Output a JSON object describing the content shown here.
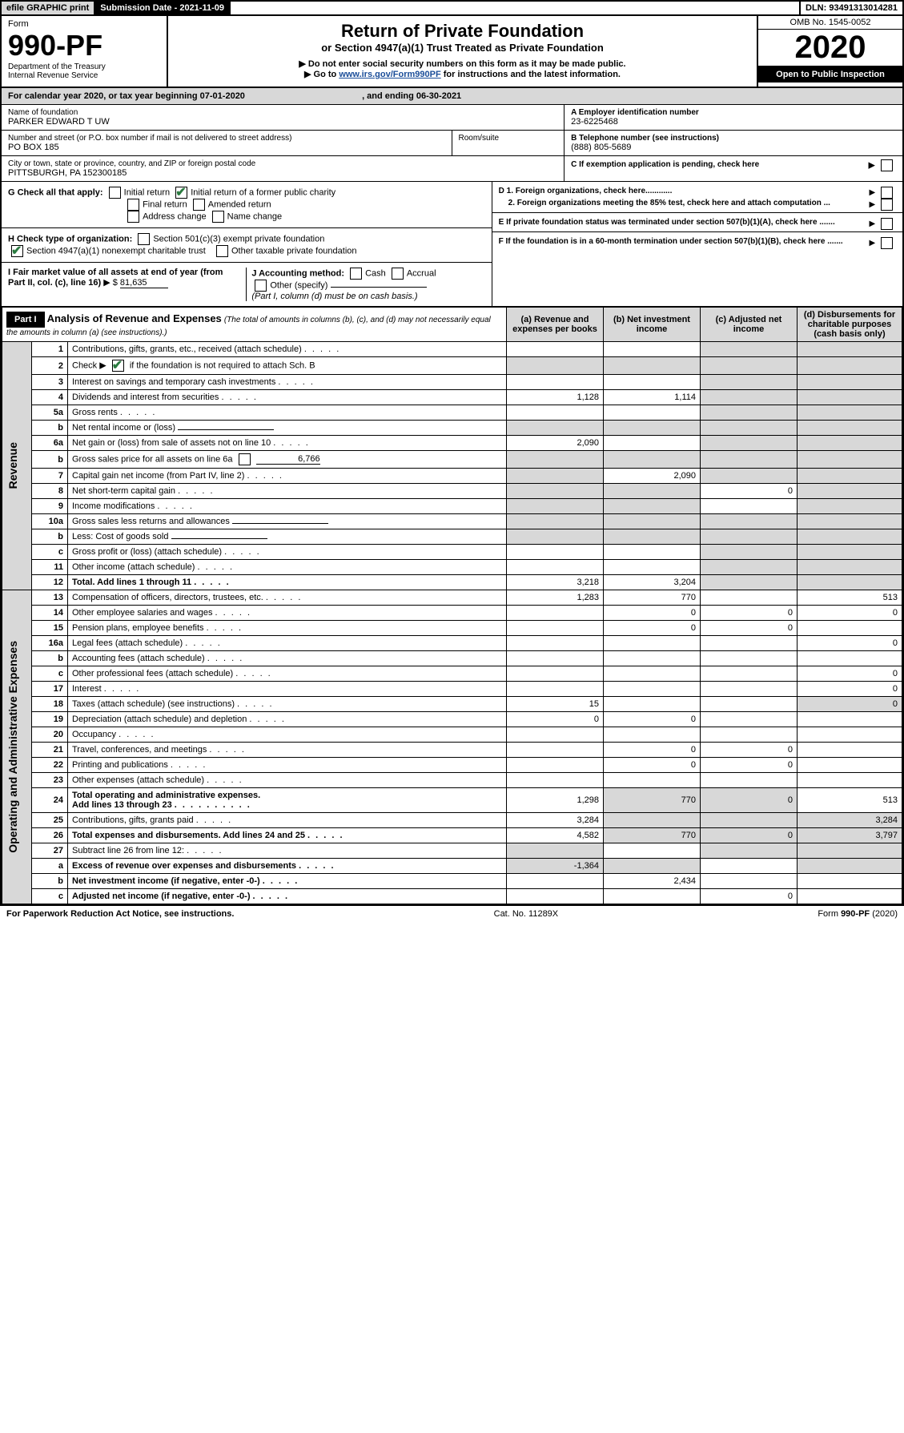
{
  "topbar": {
    "efile": "efile GRAPHIC print",
    "subdate_label": "Submission Date - ",
    "subdate": "2021-11-09",
    "dln_label": "DLN: ",
    "dln": "93491313014281"
  },
  "title": {
    "form_word": "Form",
    "form_no": "990-PF",
    "dept": "Department of the Treasury",
    "irs": "Internal Revenue Service",
    "main": "Return of Private Foundation",
    "sub": "or Section 4947(a)(1) Trust Treated as Private Foundation",
    "warn": "Do not enter social security numbers on this form as it may be made public.",
    "goto_pre": "Go to ",
    "goto_link": "www.irs.gov/Form990PF",
    "goto_post": " for instructions and the latest information.",
    "omb": "OMB No. 1545-0052",
    "year": "2020",
    "open": "Open to Public Inspection"
  },
  "cal": {
    "text_a": "For calendar year 2020, or tax year beginning ",
    "begin": "07-01-2020",
    "text_b": ", and ending ",
    "end": "06-30-2021"
  },
  "hdr": {
    "name_label": "Name of foundation",
    "name": "PARKER EDWARD T UW",
    "addr_label": "Number and street (or P.O. box number if mail is not delivered to street address)",
    "addr": "PO BOX 185",
    "room_label": "Room/suite",
    "city_label": "City or town, state or province, country, and ZIP or foreign postal code",
    "city": "PITTSBURGH, PA  152300185",
    "a_label": "A Employer identification number",
    "a_val": "23-6225468",
    "b_label": "B Telephone number (see instructions)",
    "b_val": "(888) 805-5689",
    "c_label": "C If exemption application is pending, check here",
    "d1": "D 1. Foreign organizations, check here............",
    "d2": "2. Foreign organizations meeting the 85% test, check here and attach computation ...",
    "e": "E  If private foundation status was terminated under section 507(b)(1)(A), check here .......",
    "f": "F  If the foundation is in a 60-month termination under section 507(b)(1)(B), check here .......",
    "g_label": "G Check all that apply:",
    "g_opts": [
      "Initial return",
      "Initial return of a former public charity",
      "Final return",
      "Amended return",
      "Address change",
      "Name change"
    ],
    "h_label": "H Check type of organization:",
    "h1": "Section 501(c)(3) exempt private foundation",
    "h2": "Section 4947(a)(1) nonexempt charitable trust",
    "h3": "Other taxable private foundation",
    "i_label": "I Fair market value of all assets at end of year (from Part II, col. (c), line 16)",
    "i_val": "81,635",
    "j_label": "J Accounting method:",
    "j_cash": "Cash",
    "j_accr": "Accrual",
    "j_other": "Other (specify)",
    "j_note": "(Part I, column (d) must be on cash basis.)"
  },
  "part1": {
    "label": "Part I",
    "title": "Analysis of Revenue and Expenses",
    "subtitle": "(The total of amounts in columns (b), (c), and (d) may not necessarily equal the amounts in column (a) (see instructions).)",
    "col_a": "(a)   Revenue and expenses per books",
    "col_b": "(b)  Net investment income",
    "col_c": "(c)  Adjusted net income",
    "col_d": "(d)  Disbursements for charitable purposes (cash basis only)",
    "section_rev": "Revenue",
    "section_exp": "Operating and Administrative Expenses",
    "rows": [
      {
        "n": "1",
        "d": "Contributions, gifts, grants, etc., received (attach schedule)"
      },
      {
        "n": "2",
        "d_pre": "Check ▶ ",
        "d_post": " if the foundation is not required to attach Sch. B",
        "checked": true
      },
      {
        "n": "3",
        "d": "Interest on savings and temporary cash investments"
      },
      {
        "n": "4",
        "d": "Dividends and interest from securities",
        "a": "1,128",
        "b": "1,114"
      },
      {
        "n": "5a",
        "d": "Gross rents"
      },
      {
        "n": "b",
        "d": "Net rental income or (loss)",
        "inline": true
      },
      {
        "n": "6a",
        "d": "Net gain or (loss) from sale of assets not on line 10",
        "a": "2,090"
      },
      {
        "n": "b",
        "d_pre": "Gross sales price for all assets on line 6a ",
        "inline_val": "6,766"
      },
      {
        "n": "7",
        "d": "Capital gain net income (from Part IV, line 2)",
        "b": "2,090"
      },
      {
        "n": "8",
        "d": "Net short-term capital gain",
        "c": "0"
      },
      {
        "n": "9",
        "d": "Income modifications"
      },
      {
        "n": "10a",
        "d": "Gross sales less returns and allowances",
        "inline": true
      },
      {
        "n": "b",
        "d": "Less: Cost of goods sold",
        "inline": true
      },
      {
        "n": "c",
        "d": "Gross profit or (loss) (attach schedule)"
      },
      {
        "n": "11",
        "d": "Other income (attach schedule)"
      },
      {
        "n": "12",
        "d": "Total. Add lines 1 through 11",
        "bold": true,
        "a": "3,218",
        "b": "3,204"
      },
      {
        "n": "13",
        "d": "Compensation of officers, directors, trustees, etc.",
        "a": "1,283",
        "b": "770",
        "dcol": "513"
      },
      {
        "n": "14",
        "d": "Other employee salaries and wages",
        "b": "0",
        "c": "0",
        "dcol": "0"
      },
      {
        "n": "15",
        "d": "Pension plans, employee benefits",
        "b": "0",
        "c": "0"
      },
      {
        "n": "16a",
        "d": "Legal fees (attach schedule)",
        "dcol": "0"
      },
      {
        "n": "b",
        "d": "Accounting fees (attach schedule)"
      },
      {
        "n": "c",
        "d": "Other professional fees (attach schedule)",
        "dcol": "0"
      },
      {
        "n": "17",
        "d": "Interest",
        "dcol": "0"
      },
      {
        "n": "18",
        "d": "Taxes (attach schedule) (see instructions)",
        "a": "15",
        "dcol": "0"
      },
      {
        "n": "19",
        "d": "Depreciation (attach schedule) and depletion",
        "a": "0",
        "b": "0"
      },
      {
        "n": "20",
        "d": "Occupancy"
      },
      {
        "n": "21",
        "d": "Travel, conferences, and meetings",
        "b": "0",
        "c": "0"
      },
      {
        "n": "22",
        "d": "Printing and publications",
        "b": "0",
        "c": "0"
      },
      {
        "n": "23",
        "d": "Other expenses (attach schedule)"
      },
      {
        "n": "24",
        "d": "Total operating and administrative expenses.",
        "d2": "Add lines 13 through 23",
        "bold": true,
        "a": "1,298",
        "b": "770",
        "c": "0",
        "dcol": "513"
      },
      {
        "n": "25",
        "d": "Contributions, gifts, grants paid",
        "a": "3,284",
        "dcol": "3,284"
      },
      {
        "n": "26",
        "d": "Total expenses and disbursements. Add lines 24 and 25",
        "bold": true,
        "a": "4,582",
        "b": "770",
        "c": "0",
        "dcol": "3,797"
      },
      {
        "n": "27",
        "d": "Subtract line 26 from line 12:"
      },
      {
        "n": "a",
        "d": "Excess of revenue over expenses and disbursements",
        "bold": true,
        "a": "-1,364"
      },
      {
        "n": "b",
        "d": "Net investment income (if negative, enter -0-)",
        "bold": true,
        "b": "2,434"
      },
      {
        "n": "c",
        "d": "Adjusted net income (if negative, enter -0-)",
        "bold": true,
        "c": "0"
      }
    ]
  },
  "footer": {
    "pra": "For Paperwork Reduction Act Notice, see instructions.",
    "cat": "Cat. No. 11289X",
    "form": "Form 990-PF (2020)"
  }
}
